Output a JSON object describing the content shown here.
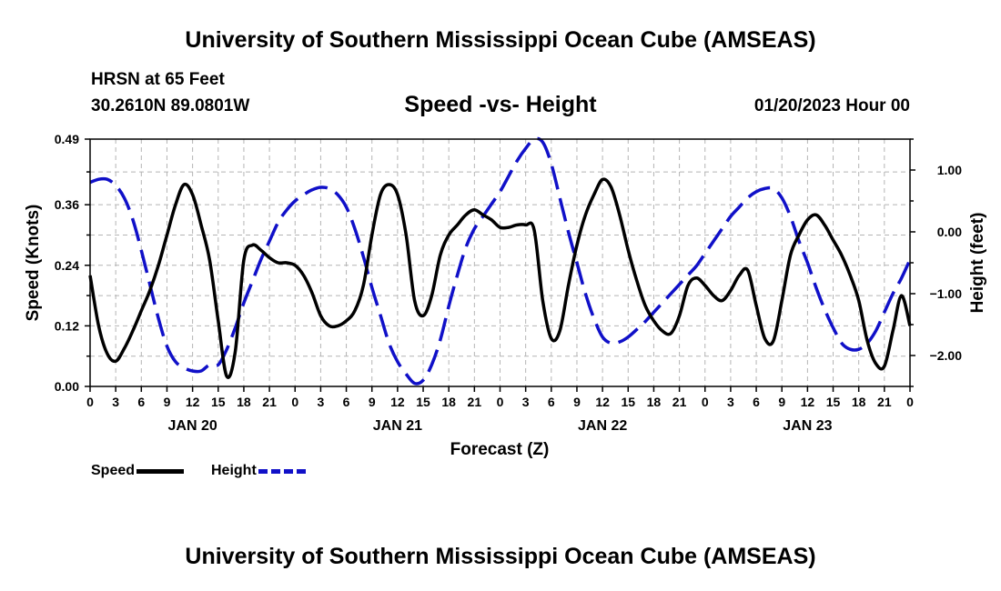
{
  "header": {
    "title": "University of Southern Mississippi Ocean Cube (AMSEAS)",
    "station": "HRSN at 65 Feet",
    "coords": "30.2610N  89.0801W",
    "subtitle": "Speed -vs- Height",
    "datetime": "01/20/2023 Hour 00",
    "footer_title": "University of Southern Mississippi Ocean Cube (AMSEAS)"
  },
  "legend": {
    "speed": "Speed",
    "height": "Height"
  },
  "chart_data": {
    "type": "line",
    "title": "Speed -vs- Height",
    "xlabel": "Forecast (Z)",
    "ylabel": "Speed (Knots)",
    "y2label": "Height (feet)",
    "x_range_hours": [
      0,
      96
    ],
    "x_tick_labels": [
      "0",
      "3",
      "6",
      "9",
      "12",
      "15",
      "18",
      "21",
      "0",
      "3",
      "6",
      "9",
      "12",
      "15",
      "18",
      "21",
      "0",
      "3",
      "6",
      "9",
      "12",
      "15",
      "18",
      "21",
      "0",
      "3",
      "6",
      "9",
      "12",
      "15",
      "18",
      "21",
      "0"
    ],
    "day_labels": [
      {
        "label": "JAN 20",
        "hour": 12
      },
      {
        "label": "JAN 21",
        "hour": 36
      },
      {
        "label": "JAN 22",
        "hour": 60
      },
      {
        "label": "JAN 23",
        "hour": 84
      }
    ],
    "y_left": {
      "min": 0,
      "max": 0.49,
      "ticks": [
        0.0,
        0.12,
        0.24,
        0.36,
        0.49
      ],
      "tick_labels": [
        "0.00",
        "0.12",
        "0.24",
        "0.36",
        "0.49"
      ]
    },
    "y_right": {
      "min": -2.5,
      "max": 1.5,
      "ticks": [
        -2,
        -1,
        0,
        1
      ],
      "tick_labels": [
        "−2.00",
        "−1.00",
        "0.00",
        "1.00"
      ]
    },
    "grid": true,
    "series": [
      {
        "name": "Speed",
        "axis": "left",
        "color": "#000000",
        "style": "solid",
        "x": [
          0,
          1,
          2,
          3,
          4,
          5,
          6,
          7,
          8,
          9,
          10,
          11,
          12,
          13,
          14,
          15,
          16,
          17,
          18,
          19,
          20,
          21,
          22,
          23,
          24,
          25,
          26,
          27,
          28,
          29,
          30,
          31,
          32,
          33,
          34,
          35,
          36,
          37,
          38,
          39,
          40,
          41,
          42,
          43,
          44,
          45,
          46,
          47,
          48,
          49,
          50,
          51,
          52,
          53,
          54,
          55,
          56,
          57,
          58,
          59,
          60,
          61,
          62,
          63,
          64,
          65,
          66,
          67,
          68,
          69,
          70,
          71,
          72,
          73,
          74,
          75,
          76,
          77,
          78,
          79,
          80,
          81,
          82,
          83,
          84,
          85,
          86,
          87,
          88,
          89,
          90,
          91,
          92,
          93,
          94,
          95,
          96
        ],
        "values": [
          0.22,
          0.12,
          0.065,
          0.05,
          0.075,
          0.11,
          0.15,
          0.19,
          0.24,
          0.3,
          0.36,
          0.4,
          0.38,
          0.32,
          0.25,
          0.13,
          0.02,
          0.07,
          0.25,
          0.28,
          0.27,
          0.255,
          0.245,
          0.245,
          0.24,
          0.22,
          0.185,
          0.14,
          0.12,
          0.12,
          0.13,
          0.15,
          0.2,
          0.3,
          0.38,
          0.4,
          0.38,
          0.3,
          0.17,
          0.14,
          0.18,
          0.26,
          0.3,
          0.32,
          0.34,
          0.35,
          0.34,
          0.33,
          0.315,
          0.315,
          0.32,
          0.32,
          0.31,
          0.17,
          0.095,
          0.11,
          0.2,
          0.28,
          0.34,
          0.38,
          0.41,
          0.395,
          0.34,
          0.27,
          0.21,
          0.16,
          0.13,
          0.11,
          0.105,
          0.14,
          0.2,
          0.215,
          0.2,
          0.18,
          0.17,
          0.19,
          0.22,
          0.23,
          0.16,
          0.095,
          0.09,
          0.17,
          0.26,
          0.3,
          0.33,
          0.34,
          0.32,
          0.29,
          0.26,
          0.22,
          0.17,
          0.09,
          0.045,
          0.04,
          0.11,
          0.18,
          0.12
        ]
      },
      {
        "name": "Height",
        "axis": "right",
        "color": "#1010c8",
        "style": "dashed",
        "x": [
          0,
          1,
          2,
          3,
          4,
          5,
          6,
          7,
          8,
          9,
          10,
          11,
          12,
          13,
          14,
          15,
          16,
          17,
          18,
          19,
          20,
          21,
          22,
          23,
          24,
          25,
          26,
          27,
          28,
          29,
          30,
          31,
          32,
          33,
          34,
          35,
          36,
          37,
          38,
          39,
          40,
          41,
          42,
          43,
          44,
          45,
          46,
          47,
          48,
          49,
          50,
          51,
          52,
          53,
          54,
          55,
          56,
          57,
          58,
          59,
          60,
          61,
          62,
          63,
          64,
          65,
          66,
          67,
          68,
          69,
          70,
          71,
          72,
          73,
          74,
          75,
          76,
          77,
          78,
          79,
          80,
          81,
          82,
          83,
          84,
          85,
          86,
          87,
          88,
          89,
          90,
          91,
          92,
          93,
          94,
          95,
          96
        ],
        "values": [
          0.8,
          0.85,
          0.85,
          0.75,
          0.55,
          0.2,
          -0.3,
          -0.85,
          -1.4,
          -1.85,
          -2.1,
          -2.2,
          -2.25,
          -2.25,
          -2.15,
          -2.15,
          -1.9,
          -1.55,
          -1.15,
          -0.8,
          -0.45,
          -0.15,
          0.15,
          0.35,
          0.5,
          0.6,
          0.68,
          0.72,
          0.7,
          0.6,
          0.4,
          0.05,
          -0.4,
          -0.9,
          -1.35,
          -1.8,
          -2.1,
          -2.3,
          -2.45,
          -2.4,
          -2.15,
          -1.75,
          -1.2,
          -0.7,
          -0.25,
          0.05,
          0.25,
          0.45,
          0.65,
          0.9,
          1.15,
          1.35,
          1.5,
          1.45,
          1.1,
          0.55,
          0.0,
          -0.5,
          -1.0,
          -1.4,
          -1.7,
          -1.8,
          -1.78,
          -1.7,
          -1.58,
          -1.45,
          -1.3,
          -1.15,
          -1.0,
          -0.85,
          -0.7,
          -0.55,
          -0.35,
          -0.15,
          0.05,
          0.25,
          0.4,
          0.55,
          0.65,
          0.7,
          0.7,
          0.55,
          0.25,
          -0.15,
          -0.5,
          -0.9,
          -1.25,
          -1.55,
          -1.8,
          -1.9,
          -1.9,
          -1.8,
          -1.6,
          -1.3,
          -1.0,
          -0.75,
          -0.45
        ]
      }
    ]
  }
}
